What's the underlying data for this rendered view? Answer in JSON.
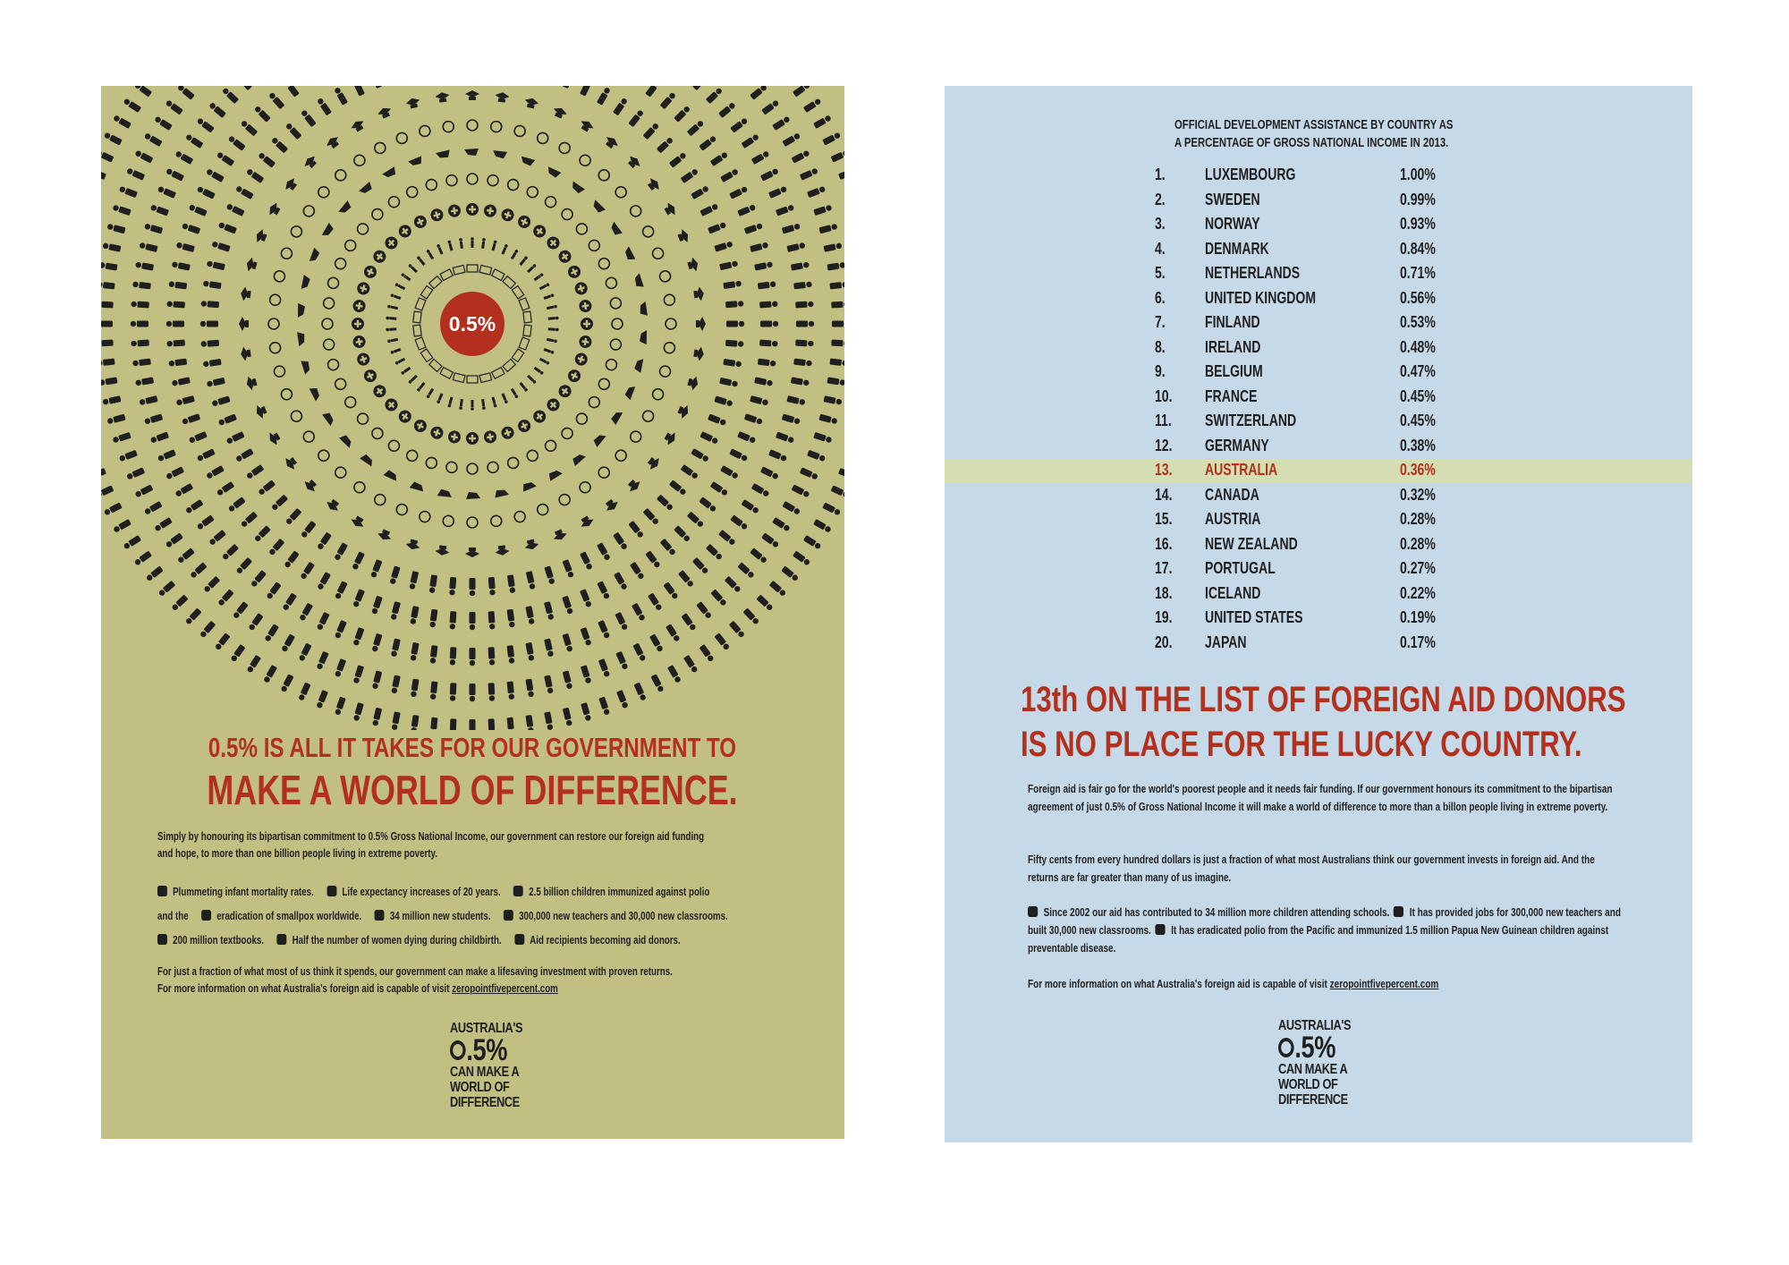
{
  "left_poster": {
    "center_label": "0.5%",
    "headline_1": "0.5% IS ALL IT TAKES FOR OUR GOVERNMENT TO",
    "headline_2": "MAKE A WORLD OF DIFFERENCE.",
    "body": [
      "Simply by honouring its bipartisan commitment to 0.5% Gross National Income, our government can restore our foreign aid funding",
      "and hope, to more than one billion people living in extreme poverty."
    ],
    "achievements": [
      [
        "Plummeting infant mortality rates.",
        "Life expectancy increases of 20 years.",
        "2.5 billion children immunized against polio"
      ],
      [
        "and the",
        "eradication of smallpox worldwide.",
        "34 million new students.",
        "300,000 new teachers and 30,000 new classrooms."
      ],
      [
        "200 million textbooks.",
        "Half the number of women dying during childbirth.",
        "Aid recipients becoming aid donors."
      ]
    ],
    "footer_1": "For just a fraction of what most of us think it spends, our government can make a lifesaving investment with proven returns.",
    "footer_2": "For more information on what Australia's foreign aid is capable of visit",
    "link": "zeropointfivepercent.com",
    "logo": [
      "AUSTRALIA'S",
      ".5%",
      "CAN MAKE A",
      "WORLD OF",
      "DIFFERENCE"
    ]
  },
  "right_poster": {
    "table_title": [
      "OFFICIAL DEVELOPMENT ASSISTANCE BY COUNTRY AS",
      "A PERCENTAGE OF GROSS NATIONAL INCOME IN 2013."
    ],
    "rows": [
      {
        "rank": "1.",
        "country": "LUXEMBOURG",
        "value": "1.00%"
      },
      {
        "rank": "2.",
        "country": "SWEDEN",
        "value": "0.99%"
      },
      {
        "rank": "3.",
        "country": "NORWAY",
        "value": "0.93%"
      },
      {
        "rank": "4.",
        "country": "DENMARK",
        "value": "0.84%"
      },
      {
        "rank": "5.",
        "country": "NETHERLANDS",
        "value": "0.71%"
      },
      {
        "rank": "6.",
        "country": "UNITED KINGDOM",
        "value": "0.56%"
      },
      {
        "rank": "7.",
        "country": "FINLAND",
        "value": "0.53%"
      },
      {
        "rank": "8.",
        "country": "IRELAND",
        "value": "0.48%"
      },
      {
        "rank": "9.",
        "country": "BELGIUM",
        "value": "0.47%"
      },
      {
        "rank": "10.",
        "country": "FRANCE",
        "value": "0.45%"
      },
      {
        "rank": "11.",
        "country": "SWITZERLAND",
        "value": "0.45%"
      },
      {
        "rank": "12.",
        "country": "GERMANY",
        "value": "0.38%"
      },
      {
        "rank": "13.",
        "country": "AUSTRALIA",
        "value": "0.36%",
        "highlight": true
      },
      {
        "rank": "14.",
        "country": "CANADA",
        "value": "0.32%"
      },
      {
        "rank": "15.",
        "country": "AUSTRIA",
        "value": "0.28%"
      },
      {
        "rank": "16.",
        "country": "NEW ZEALAND",
        "value": "0.28%"
      },
      {
        "rank": "17.",
        "country": "PORTUGAL",
        "value": "0.27%"
      },
      {
        "rank": "18.",
        "country": "ICELAND",
        "value": "0.22%"
      },
      {
        "rank": "19.",
        "country": "UNITED STATES",
        "value": "0.19%"
      },
      {
        "rank": "20.",
        "country": "JAPAN",
        "value": "0.17%"
      }
    ],
    "headline": [
      "13th ON THE LIST OF FOREIGN AID DONORS",
      "IS NO PLACE FOR THE LUCKY COUNTRY."
    ],
    "paragraph_1": "Foreign aid is fair go for the world's poorest people and it needs fair funding. If our government honours its commitment to the bipartisan agreement of just 0.5% of Gross National Income it will make a world of difference to more than a billon people living in extreme poverty.",
    "paragraph_2": "Fifty cents from every hundred dollars is just a fraction of what most Australians think our government invests in foreign aid. And the returns are far greater than many of us imagine.",
    "paragraph_3": [
      "Since 2002 our aid has contributed to 34 million more children attending schools.",
      "It has provided jobs for 300,000 new teachers and built 30,000 new classrooms.",
      "It has eradicated polio from the Pacific and immunized 1.5 million Papua New Guinean children against preventable disease."
    ],
    "footer": "For more information on what Australia's foreign aid is capable of visit",
    "link": "zeropointfivepercent.com",
    "logo": [
      "AUSTRALIA'S",
      ".5%",
      "CAN MAKE A",
      "WORLD OF",
      "DIFFERENCE"
    ]
  }
}
